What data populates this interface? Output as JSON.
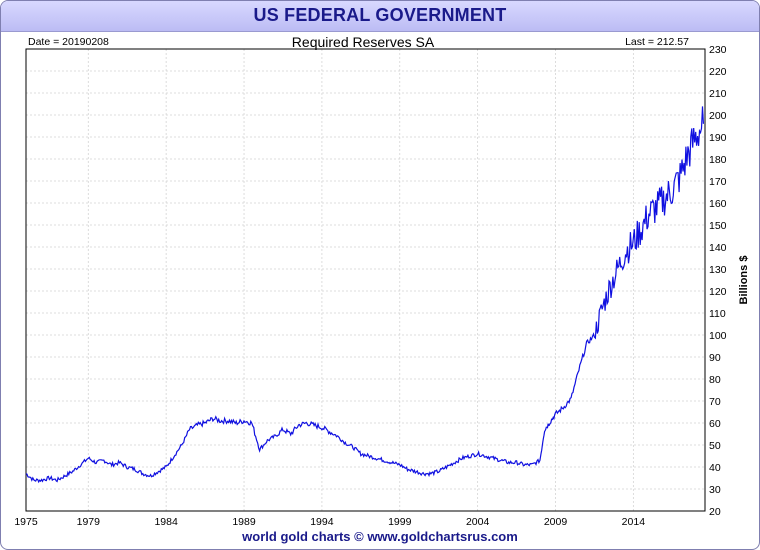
{
  "header": {
    "title": "US FEDERAL GOVERNMENT"
  },
  "footer": {
    "credit": "world gold charts © www.goldchartsrus.com"
  },
  "chart_data": {
    "type": "line",
    "title": "Required Reserves SA",
    "date_label": "Date = 20190208",
    "last_label": "Last = 212.57",
    "ylabel": "Billions $",
    "xlim": [
      1975,
      2018.6
    ],
    "ylim": [
      20,
      230
    ],
    "x_ticks": [
      1975,
      1979,
      1984,
      1989,
      1994,
      1999,
      2004,
      2009,
      2014
    ],
    "y_ticks": [
      20,
      30,
      40,
      50,
      60,
      70,
      80,
      90,
      100,
      110,
      120,
      130,
      140,
      150,
      160,
      170,
      180,
      190,
      200,
      210,
      220,
      230
    ],
    "grid": true,
    "line_color": "#1010e0",
    "series": [
      {
        "x": [
          1975.0,
          1975.5,
          1976.0,
          1976.5,
          1977.0,
          1977.5,
          1978.0,
          1978.5,
          1979.0,
          1979.5,
          1980.0,
          1980.5,
          1981.0,
          1981.5,
          1982.0,
          1982.5,
          1983.0,
          1983.5,
          1984.0,
          1984.5,
          1985.0,
          1985.5,
          1986.0,
          1986.5,
          1987.0,
          1987.5,
          1988.0,
          1988.5,
          1989.0,
          1989.5,
          1990.0,
          1990.5,
          1991.0,
          1991.5,
          1992.0,
          1992.5,
          1993.0,
          1993.5,
          1994.0,
          1994.5,
          1995.0,
          1995.5,
          1996.0,
          1996.5,
          1997.0,
          1997.5,
          1998.0,
          1998.5,
          1999.0,
          1999.5,
          2000.0,
          2000.5,
          2001.0,
          2001.5,
          2002.0,
          2002.5,
          2003.0,
          2003.5,
          2004.0,
          2004.5,
          2005.0,
          2005.5,
          2006.0,
          2006.5,
          2007.0,
          2007.5,
          2008.0,
          2008.3,
          2008.6,
          2009.0,
          2009.5,
          2010.0,
          2010.5,
          2011.0,
          2011.5,
          2012.0,
          2012.5,
          2013.0,
          2013.5,
          2014.0,
          2014.5,
          2015.0,
          2015.5,
          2016.0,
          2016.5,
          2017.0,
          2017.5,
          2018.0,
          2018.5
        ],
        "y": [
          37,
          34,
          34,
          35,
          34,
          36,
          38,
          41,
          44,
          42,
          43,
          41,
          42,
          40,
          39,
          37,
          36,
          38,
          40,
          45,
          50,
          57,
          59,
          60,
          62,
          61,
          61,
          60,
          61,
          60,
          48,
          52,
          54,
          57,
          55,
          59,
          60,
          59,
          58,
          56,
          54,
          51,
          49,
          46,
          45,
          44,
          43,
          42,
          41,
          39,
          38,
          37,
          37,
          38,
          40,
          42,
          44,
          45,
          46,
          45,
          44,
          43,
          42,
          42,
          41,
          41,
          43,
          57,
          60,
          64,
          67,
          71,
          84,
          96,
          100,
          112,
          122,
          130,
          138,
          142,
          148,
          155,
          158,
          162,
          166,
          172,
          182,
          190,
          196
        ]
      }
    ]
  }
}
